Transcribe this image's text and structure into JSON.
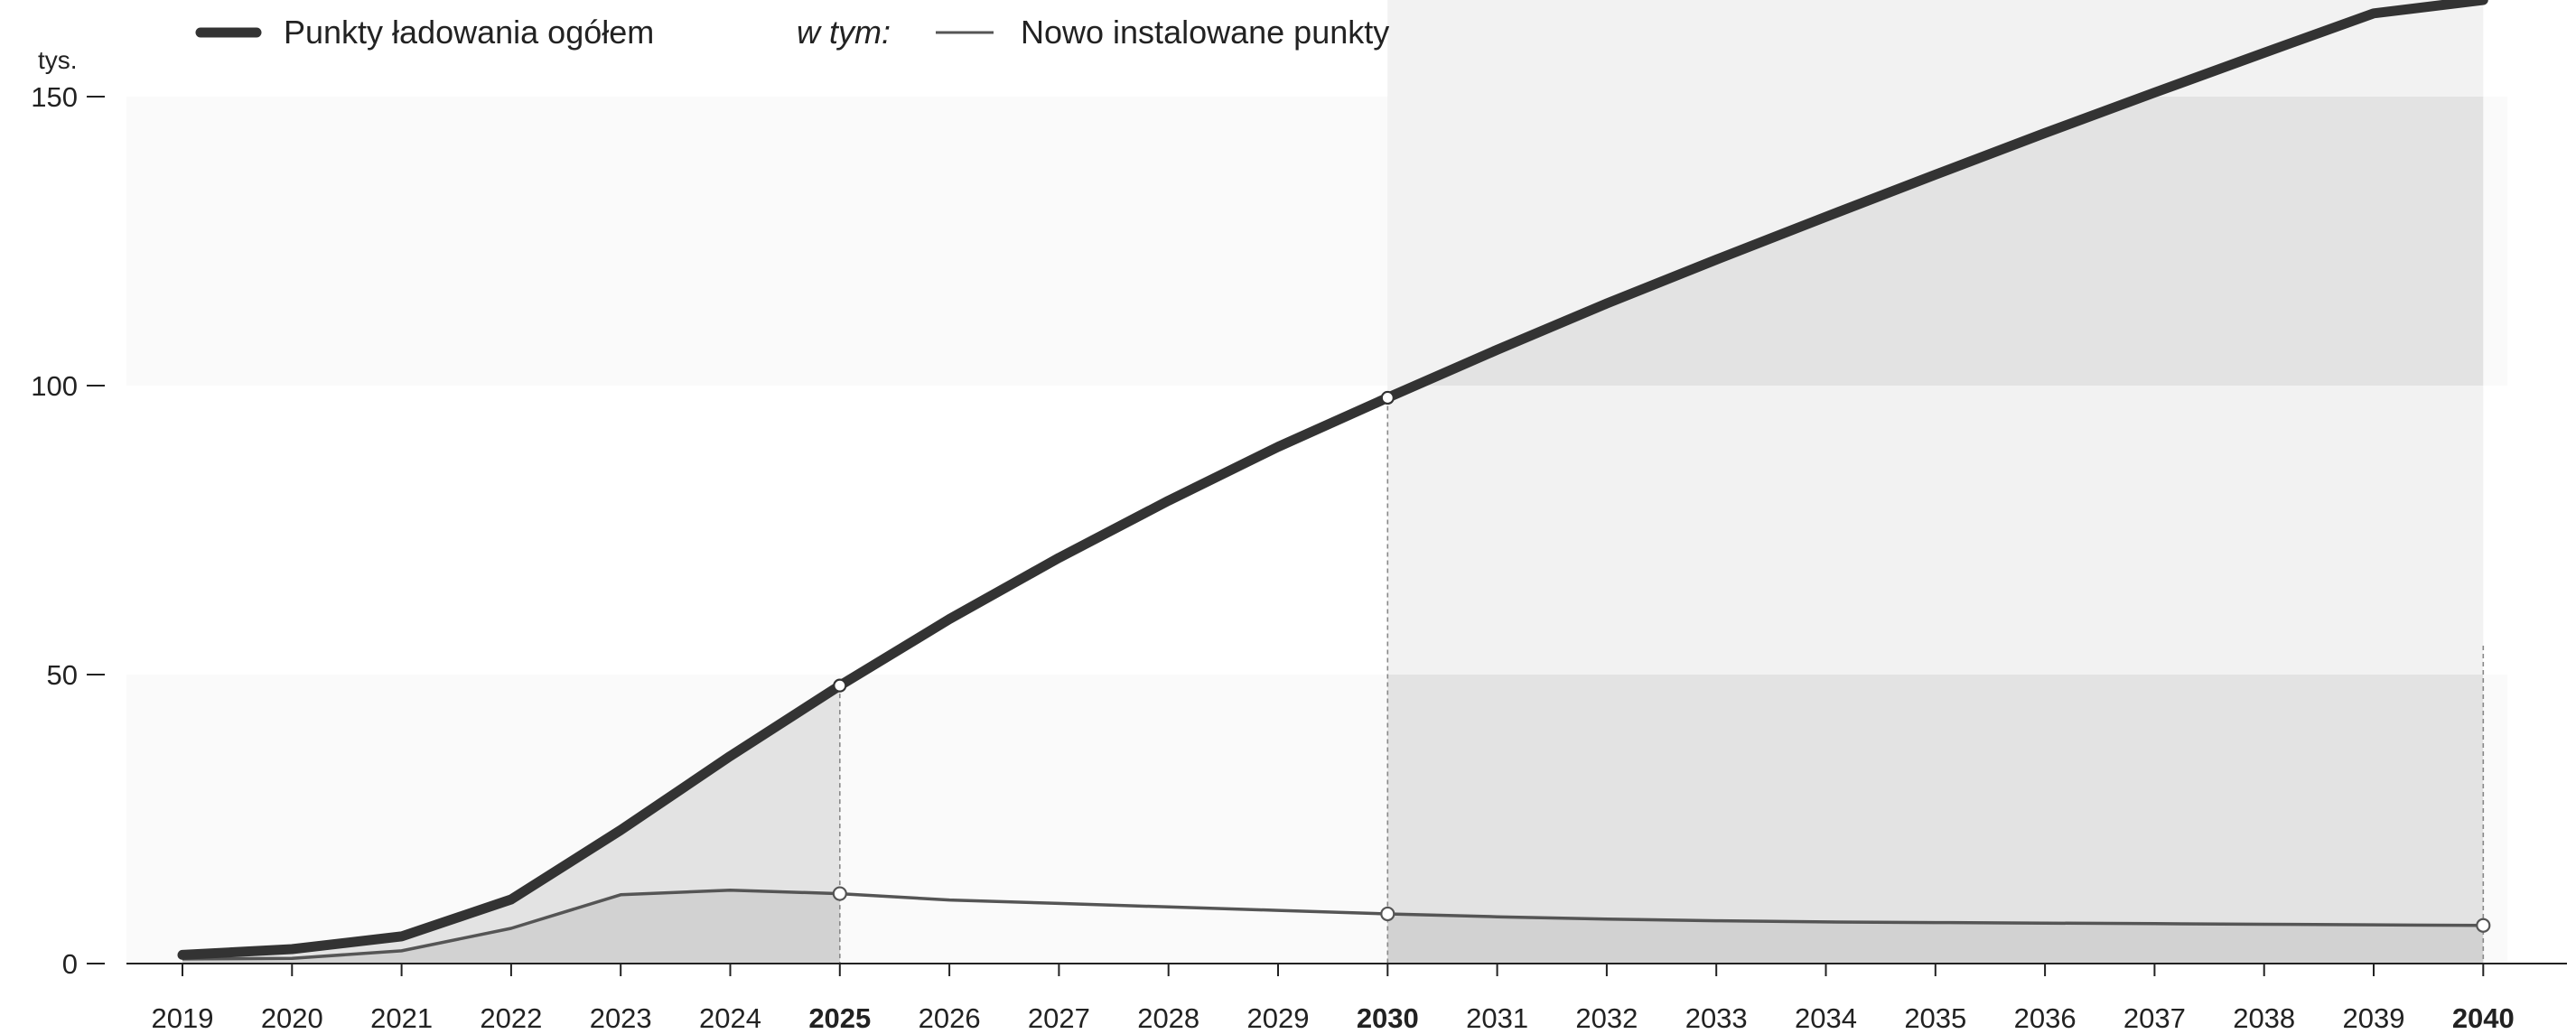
{
  "chart_data": {
    "type": "line",
    "unit_label": "tys.",
    "x": [
      2019,
      2020,
      2021,
      2022,
      2023,
      2024,
      2025,
      2026,
      2027,
      2028,
      2029,
      2030,
      2031,
      2032,
      2033,
      2034,
      2035,
      2036,
      2037,
      2038,
      2039,
      2040
    ],
    "x_labels": [
      "2019",
      "2020",
      "2021",
      "2022",
      "2023",
      "2024",
      "2025",
      "2026",
      "2027",
      "2028",
      "2029",
      "2030",
      "2031",
      "2032",
      "2033",
      "2034",
      "2035",
      "2036",
      "2037",
      "2038",
      "2039",
      "2040"
    ],
    "highlight_years": [
      2025,
      2030,
      2040
    ],
    "yticks": [
      0,
      50,
      100,
      150
    ],
    "ylim": [
      0,
      170
    ],
    "grid": false,
    "legend": {
      "placement": "top-left",
      "prefix": "w tym:"
    },
    "series": [
      {
        "name": "Punkty ładowania ogółem",
        "values": [
          1.5,
          2.5,
          4.7,
          11.1,
          23.1,
          35.9,
          48.1,
          59.6,
          70.2,
          80.1,
          89.4,
          97.9,
          106.2,
          114.2,
          121.8,
          129.2,
          136.5,
          143.7,
          150.7,
          157.6,
          164.4,
          171.2
        ]
      },
      {
        "name": "Nowo instalowane punkty",
        "values": [
          0.8,
          0.9,
          2.2,
          6.1,
          11.9,
          12.7,
          12.1,
          11.0,
          10.4,
          9.8,
          9.2,
          8.6,
          8.1,
          7.7,
          7.4,
          7.2,
          7.1,
          7.0,
          6.9,
          6.8,
          6.7,
          6.6
        ]
      }
    ],
    "marked_points": [
      {
        "series": 0,
        "x": 2025
      },
      {
        "series": 0,
        "x": 2030
      },
      {
        "series": 1,
        "x": 2025
      },
      {
        "series": 1,
        "x": 2030
      },
      {
        "series": 1,
        "x": 2040
      }
    ],
    "colors": {
      "total_line": "#333333",
      "new_line": "#555555",
      "band_light": "#fafafa",
      "band_mid": "#f2f2f2",
      "area_total": "#e3e3e3",
      "area_new": "#d2d2d2",
      "axis": "#222222"
    }
  }
}
